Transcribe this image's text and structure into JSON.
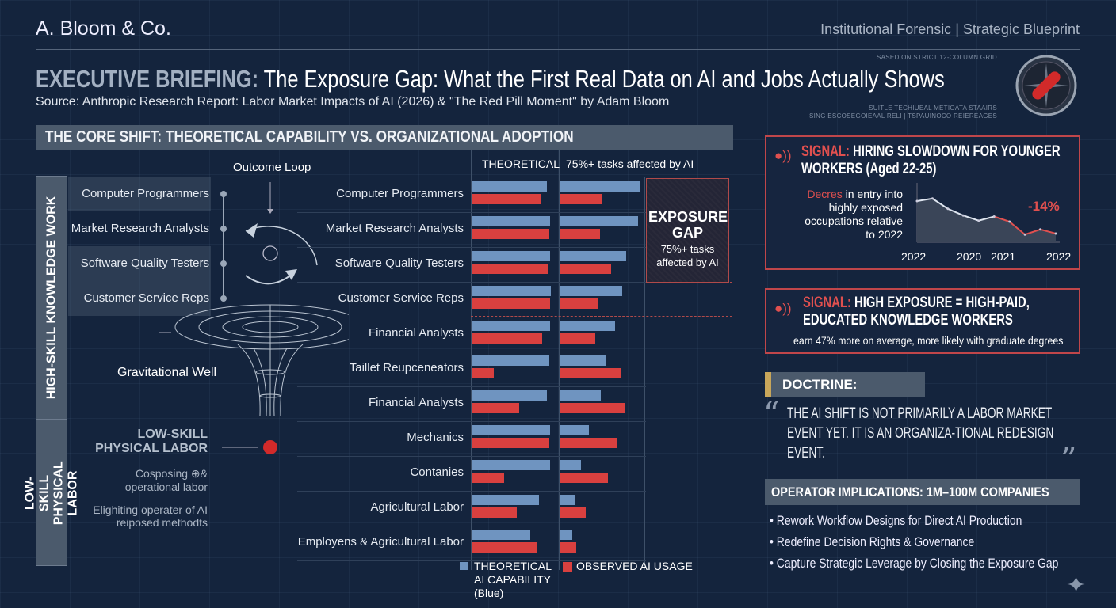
{
  "header": {
    "brand": "A. Bloom & Co.",
    "tagline": "Institutional Forensic | Strategic Blueprint",
    "grid_note": "SASED ON STRICT 12-COLUMN GRID",
    "meta_note_1": "SUITLE TECHIUEAL METIOATA STAAIRS",
    "meta_note_2": "SING ESCOSEGOIEAAL RELI | TSPAUINOCO REIEREAGES",
    "title_prefix": "EXECUTIVE BRIEFING:",
    "title": " The Exposure Gap: What the First Real Data on AI and Jobs Actually Shows",
    "source": "Source: Anthropic Research Report: Labor Market Impacts of AI (2026) & \"The Red Pill Moment\" by Adam Bloom",
    "logo_icon": "red-pill-compass-icon"
  },
  "core": {
    "banner": "THE CORE SHIFT: THEORETICAL CAPABILITY VS. ORGANIZATIONAL ADOPTION",
    "band_high": "HIGH-SKILL KNOWLEDGE WORK",
    "band_low": "LOW-SKILL PHYSICAL LABOR",
    "left_labels": [
      "Computer Programmers",
      "Market Research Analysts",
      "Software Quality Testers",
      "Customer Service Reps"
    ],
    "outcome_loop": "Outcome Loop",
    "grav_well": "Gravitational Well",
    "low_title": "LOW-SKILL PHYSICAL LABOR",
    "low_items": [
      "Cosposing ⊕& operational labor",
      "Elighiting operater of AI reiposed methodts"
    ]
  },
  "chart_data": {
    "type": "bar",
    "orientation": "horizontal",
    "column_headers": [
      "THEORETICAL",
      "75%+ tasks affected by AI"
    ],
    "categories": [
      "Computer Programmers",
      "Market Research Analysts",
      "Software Quality Testers",
      "Customer Service Reps",
      "Financial Analysts",
      "Taillet Reupceneators",
      "Financial Analysts",
      "Mechanics",
      "Contanies",
      "Agricultural Labor",
      "Employens & Agricultural Labor"
    ],
    "xlim": [
      0,
      100
    ],
    "panels": [
      {
        "header": "THEORETICAL",
        "series": [
          {
            "name": "THEORETICAL AI CAPABILITY (Blue)",
            "color": "#6f94c0",
            "values": [
              90,
              94,
              94,
              95,
              94,
              93,
              90,
              94,
              94,
              81,
              70
            ]
          },
          {
            "name": "OBSERVED AI USAGE",
            "color": "#d9403f",
            "values": [
              84,
              93,
              91,
              94,
              85,
              27,
              57,
              93,
              39,
              54,
              78
            ]
          }
        ]
      },
      {
        "header": "75%+ tasks affected by AI",
        "series": [
          {
            "name": "THEORETICAL AI CAPABILITY (Blue)",
            "color": "#6f94c0",
            "values": [
              96,
              93,
              79,
              74,
              66,
              54,
              49,
              34,
              25,
              18,
              14
            ]
          },
          {
            "name": "OBSERVED AI USAGE",
            "color": "#d9403f",
            "values": [
              50,
              48,
              61,
              46,
              42,
              73,
              77,
              69,
              57,
              30,
              19
            ]
          }
        ]
      }
    ],
    "legend": [
      "THEORETICAL AI CAPABILITY (Blue)",
      "OBSERVED AI USAGE"
    ],
    "annotation": {
      "title": "EXPOSURE GAP",
      "text": "75%+ tasks affected by AI"
    }
  },
  "signal1": {
    "prefix": "SIGNAL:",
    "title": " HIRING SLOWDOWN FOR YOUNGER WORKERS (Aged 22-25)",
    "desc_accent": "Decres",
    "desc": " in entry into highly exposed occupations relative to 2022",
    "callout": "-14%",
    "x_ticks": [
      "2022",
      "2020",
      "2021",
      "2022"
    ],
    "line": [
      0.8,
      0.85,
      0.65,
      0.52,
      0.42,
      0.5,
      0.4,
      0.15,
      0.25,
      0.17
    ]
  },
  "signal2": {
    "prefix": "SIGNAL:",
    "title": " HIGH EXPOSURE = HIGH-PAID, EDUCATED KNOWLEDGE WORKERS",
    "desc": "earn 47% more on average, more likely with graduate degrees"
  },
  "doctrine": {
    "label": "DOCTRINE:",
    "quote": "THE AI SHIFT IS NOT PRIMARILY A LABOR MARKET EVENT YET. IT IS AN ORGANIZA-TIONAL REDESIGN EVENT."
  },
  "operator": {
    "banner": "OPERATOR IMPLICATIONS: 1M–100M COMPANIES",
    "items": [
      "Rework Workflow Designs for Direct AI Production",
      "Redefine Decision Rights & Governance",
      "Capture Strategic Leverage by Closing the Exposure Gap"
    ]
  },
  "colors": {
    "bg": "#14243d",
    "blue": "#6f94c0",
    "red": "#d9403f",
    "panel": "#4b5a6c"
  }
}
